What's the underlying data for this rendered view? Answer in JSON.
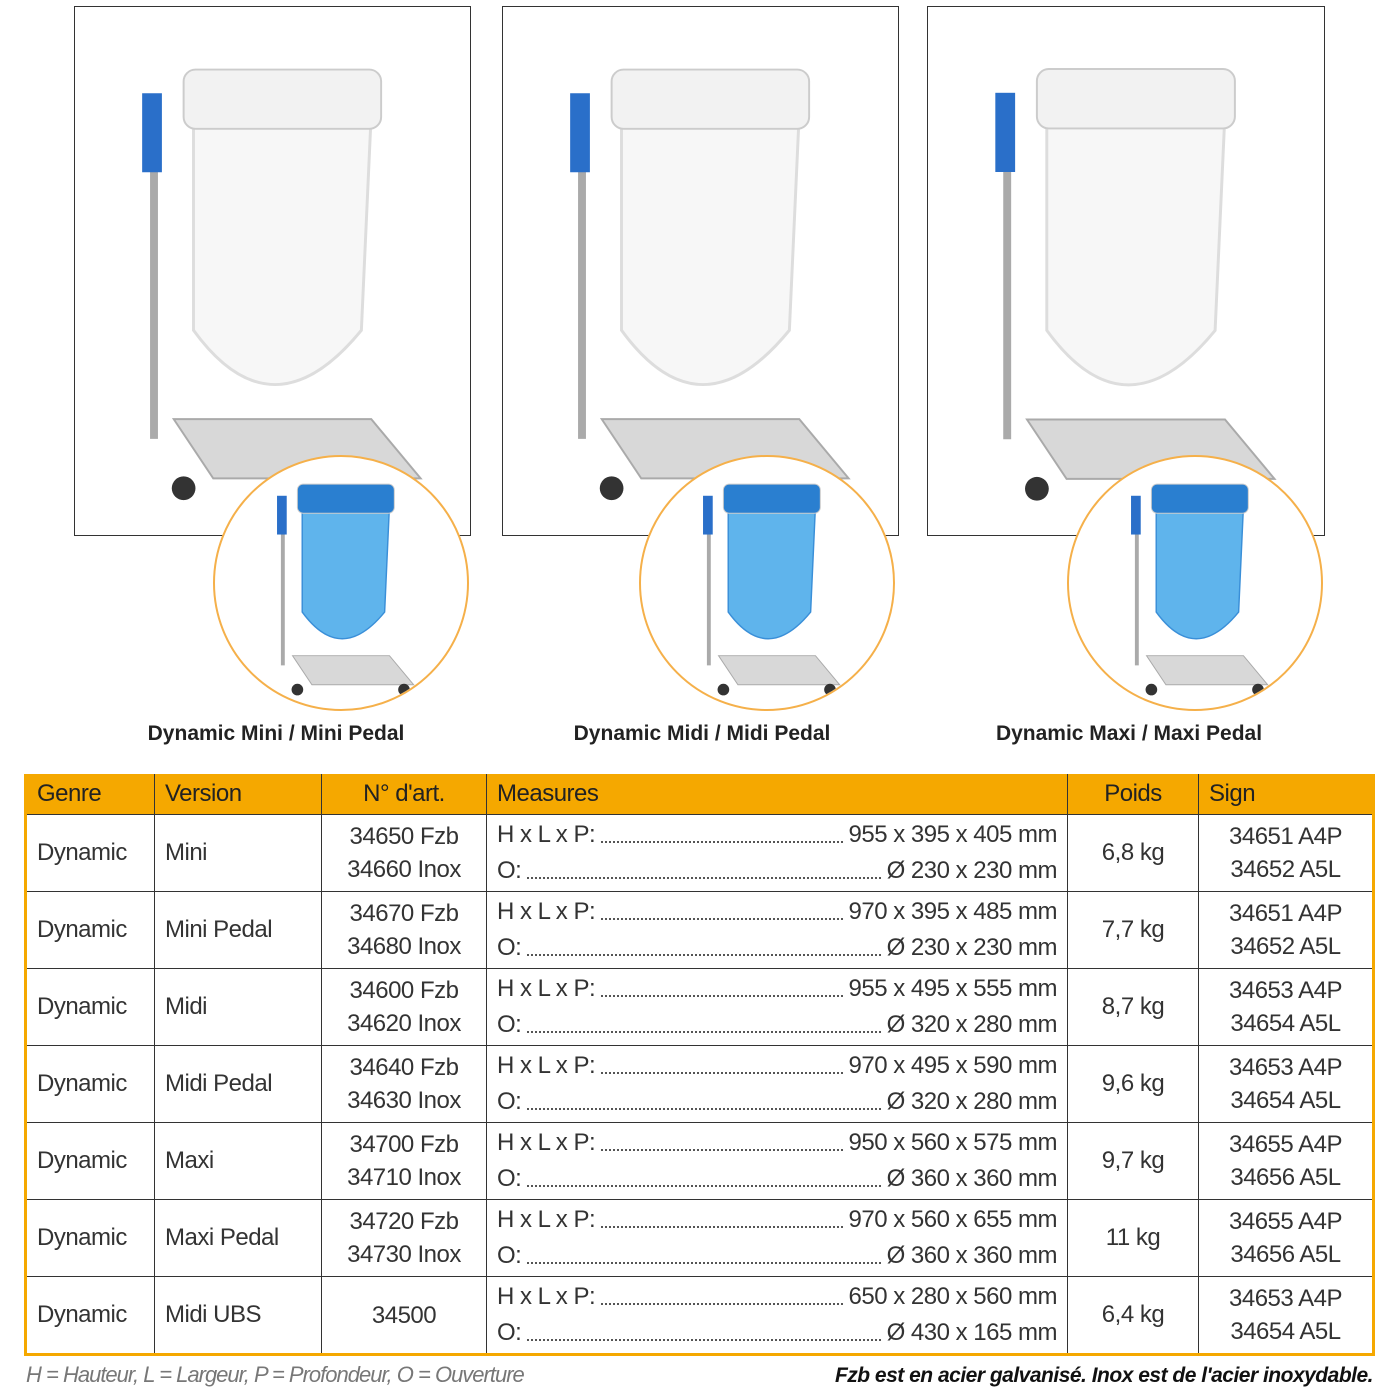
{
  "products": [
    {
      "caption": "Dynamic Mini / Mini Pedal"
    },
    {
      "caption": "Dynamic Midi / Midi Pedal"
    },
    {
      "caption": "Dynamic Maxi / Maxi Pedal"
    }
  ],
  "colors": {
    "header": "#f5a800",
    "circle_border": "#f5b04a",
    "bag_blue": "#3a8fd8"
  },
  "table": {
    "headers": {
      "genre": "Genre",
      "version": "Version",
      "art": "N° d'art.",
      "measures": "Measures",
      "poids": "Poids",
      "sign": "Sign"
    },
    "rows": [
      {
        "genre": "Dynamic",
        "version": "Mini",
        "art": [
          "34650 Fzb",
          "34660 Inox"
        ],
        "hlp_label": "H x L x P:",
        "hlp": "955 x 395 x 405 mm",
        "o_label": "O:",
        "o": "Ø 230 x 230 mm",
        "poids": "6,8 kg",
        "sign": [
          "34651 A4P",
          "34652 A5L"
        ]
      },
      {
        "genre": "Dynamic",
        "version": "Mini Pedal",
        "art": [
          "34670 Fzb",
          "34680 Inox"
        ],
        "hlp_label": "H x L x P:",
        "hlp": "970 x 395 x 485 mm",
        "o_label": "O:",
        "o": "Ø 230 x 230 mm",
        "poids": "7,7 kg",
        "sign": [
          "34651 A4P",
          "34652 A5L"
        ]
      },
      {
        "genre": "Dynamic",
        "version": "Midi",
        "art": [
          "34600 Fzb",
          "34620 Inox"
        ],
        "hlp_label": "H x L x P:",
        "hlp": "955 x 495 x 555 mm",
        "o_label": "O:",
        "o": "Ø 320 x 280 mm",
        "poids": "8,7 kg",
        "sign": [
          "34653 A4P",
          "34654 A5L"
        ]
      },
      {
        "genre": "Dynamic",
        "version": "Midi Pedal",
        "art": [
          "34640 Fzb",
          "34630 Inox"
        ],
        "hlp_label": "H x L x P:",
        "hlp": "970 x 495 x 590 mm",
        "o_label": "O:",
        "o": "Ø 320 x 280 mm",
        "poids": "9,6 kg",
        "sign": [
          "34653 A4P",
          "34654 A5L"
        ]
      },
      {
        "genre": "Dynamic",
        "version": "Maxi",
        "art": [
          "34700 Fzb",
          "34710 Inox"
        ],
        "hlp_label": "H x L x P:",
        "hlp": "950 x 560 x 575 mm",
        "o_label": "O:",
        "o": "Ø 360 x 360 mm",
        "poids": "9,7 kg",
        "sign": [
          "34655 A4P",
          "34656 A5L"
        ]
      },
      {
        "genre": "Dynamic",
        "version": "Maxi Pedal",
        "art": [
          "34720 Fzb",
          "34730 Inox"
        ],
        "hlp_label": "H x L x P:",
        "hlp": "970 x 560 x 655 mm",
        "o_label": "O:",
        "o": "Ø 360 x 360 mm",
        "poids": "11 kg",
        "sign": [
          "34655 A4P",
          "34656 A5L"
        ]
      },
      {
        "genre": "Dynamic",
        "version": "Midi UBS",
        "art": [
          "34500"
        ],
        "hlp_label": "H x L x P:",
        "hlp": "650 x 280 x 560 mm",
        "o_label": "O:",
        "o": "Ø 430 x 165 mm",
        "poids": "6,4 kg",
        "sign": [
          "34653 A4P",
          "34654 A5L"
        ]
      }
    ]
  },
  "footer": {
    "legend": "H = Hauteur, L = Largeur, P = Profondeur, O = Ouverture",
    "note": "Fzb est en acier galvanisé. Inox est de l'acier inoxydable."
  }
}
